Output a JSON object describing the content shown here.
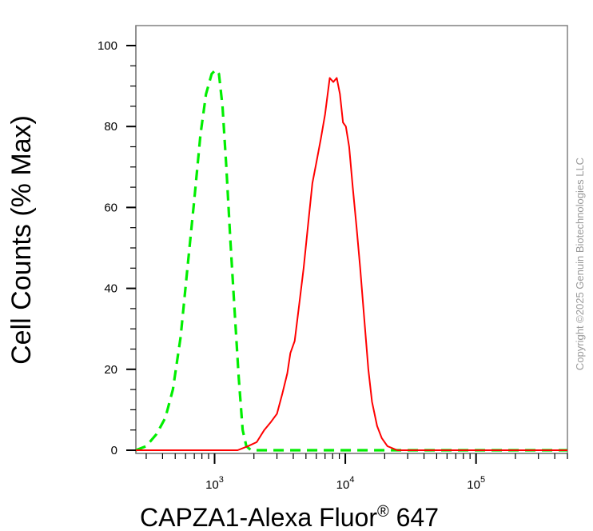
{
  "chart_data": {
    "type": "line",
    "xlabel": "CAPZA1-Alexa Fluor",
    "xlabel_mark": "®",
    "xlabel_suffix": " 647",
    "ylabel": "Cell Counts (% Max)",
    "x_scale": "log",
    "xlim": [
      250,
      500000
    ],
    "ylim": [
      0,
      100
    ],
    "x_tick_labels": [
      {
        "base": "10",
        "exp": "3",
        "value": 1000
      },
      {
        "base": "10",
        "exp": "4",
        "value": 10000
      },
      {
        "base": "10",
        "exp": "5",
        "value": 100000
      }
    ],
    "y_ticks": [
      0,
      20,
      40,
      60,
      80,
      100
    ],
    "grid": false,
    "copyright": "Copyright ©2025 Genuin Biotechnologies LLC",
    "series": [
      {
        "style": "dashed",
        "color": "#00ee00",
        "points": [
          [
            250,
            0
          ],
          [
            300,
            1
          ],
          [
            360,
            4
          ],
          [
            420,
            8
          ],
          [
            480,
            15
          ],
          [
            550,
            28
          ],
          [
            620,
            45
          ],
          [
            700,
            62
          ],
          [
            780,
            78
          ],
          [
            860,
            88
          ],
          [
            950,
            93
          ],
          [
            1020,
            94
          ],
          [
            1080,
            93
          ],
          [
            1150,
            85
          ],
          [
            1230,
            70
          ],
          [
            1320,
            52
          ],
          [
            1420,
            35
          ],
          [
            1530,
            18
          ],
          [
            1640,
            5
          ],
          [
            1750,
            1
          ],
          [
            1900,
            0
          ],
          [
            500000,
            0
          ]
        ]
      },
      {
        "style": "solid",
        "color": "#ff0000",
        "points": [
          [
            250,
            0
          ],
          [
            1500,
            0
          ],
          [
            1800,
            1
          ],
          [
            2100,
            2
          ],
          [
            2400,
            5
          ],
          [
            2700,
            7
          ],
          [
            3000,
            9
          ],
          [
            3300,
            14
          ],
          [
            3600,
            19
          ],
          [
            3800,
            24
          ],
          [
            4100,
            27
          ],
          [
            4400,
            35
          ],
          [
            4800,
            45
          ],
          [
            5200,
            56
          ],
          [
            5600,
            66
          ],
          [
            6000,
            71
          ],
          [
            6500,
            77
          ],
          [
            7000,
            83
          ],
          [
            7600,
            92
          ],
          [
            8100,
            91
          ],
          [
            8600,
            92
          ],
          [
            9100,
            88
          ],
          [
            9600,
            81
          ],
          [
            10100,
            80
          ],
          [
            10700,
            75
          ],
          [
            11400,
            65
          ],
          [
            12200,
            55
          ],
          [
            13000,
            45
          ],
          [
            14000,
            32
          ],
          [
            15000,
            20
          ],
          [
            16000,
            12
          ],
          [
            17500,
            6
          ],
          [
            19000,
            3
          ],
          [
            21000,
            1
          ],
          [
            25000,
            0
          ],
          [
            500000,
            0
          ]
        ]
      }
    ]
  }
}
